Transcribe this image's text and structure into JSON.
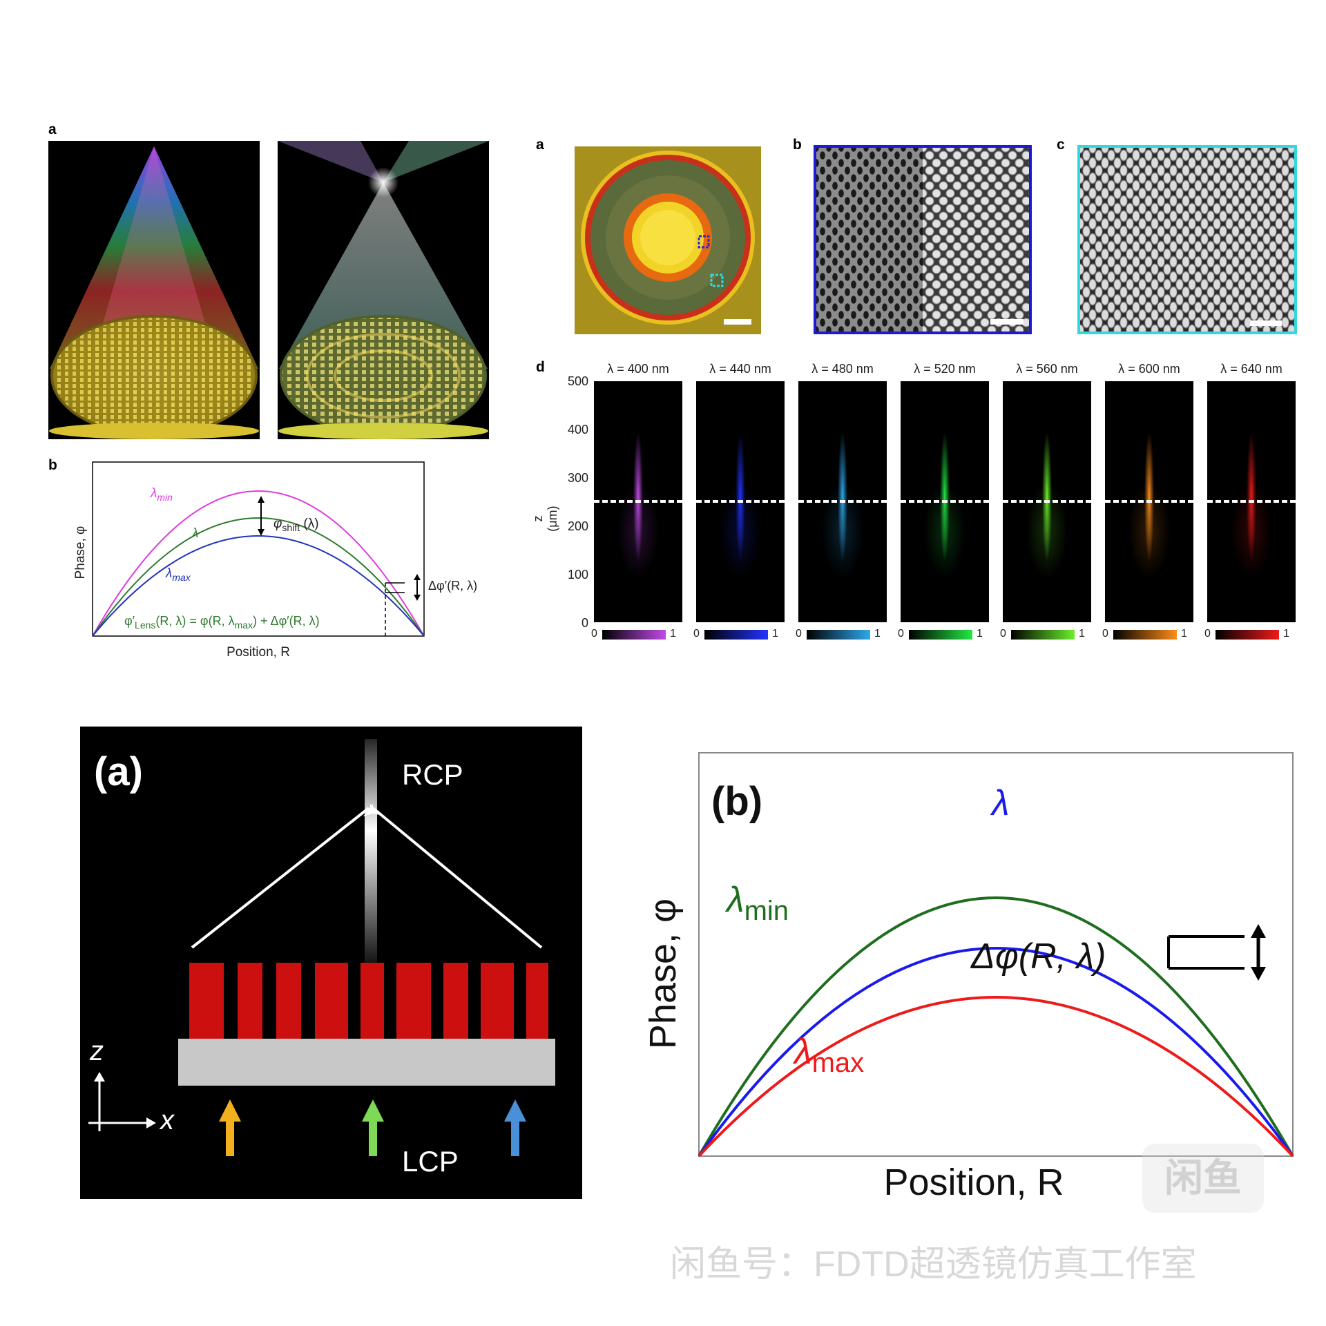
{
  "top_left": {
    "label_a": "a",
    "label_b": "b",
    "plot": {
      "ylabel": "Phase, φ",
      "xlabel": "Position, R",
      "curve_min": "λ",
      "curve_min_sub": "min",
      "curve_mid": "λ",
      "curve_max": "λ",
      "curve_max_sub": "max",
      "shift_label": "φ",
      "shift_sub": "shift",
      "shift_arg": " (λ)",
      "delta_label": "Δφ′(R, λ)",
      "eq_pre": "φ′",
      "eq_sub": "Lens",
      "eq_mid": "(R, λ) = φ(R, λ",
      "eq_sub2": "max",
      "eq_post": ") + Δφ′(R, λ)",
      "colors": {
        "min": "#e03ae0",
        "mid": "#2f7a2f",
        "max": "#2233bb"
      }
    }
  },
  "top_right": {
    "label_a": "a",
    "label_b": "b",
    "label_c": "c",
    "label_d": "d",
    "ylabel": "z (μm)",
    "yticks": [
      "500",
      "400",
      "300",
      "200",
      "100",
      "0"
    ],
    "wavelengths": [
      {
        "title": "λ = 400 nm",
        "color": "#c04ae8"
      },
      {
        "title": "λ = 440 nm",
        "color": "#2233ff"
      },
      {
        "title": "λ = 480 nm",
        "color": "#2ea8ee"
      },
      {
        "title": "λ = 520 nm",
        "color": "#22e844"
      },
      {
        "title": "λ = 560 nm",
        "color": "#6af02a"
      },
      {
        "title": "λ = 600 nm",
        "color": "#ff8c1a"
      },
      {
        "title": "λ = 640 nm",
        "color": "#ee1a1a"
      }
    ],
    "cbar_min": "0",
    "cbar_max": "1"
  },
  "bottom_left": {
    "label": "(a)",
    "top_text": "RCP",
    "bottom_text": "LCP",
    "axis_z": "z",
    "axis_x": "x",
    "arrow_colors": [
      "#f2b01e",
      "#7ed957",
      "#4a90d9"
    ]
  },
  "bottom_right": {
    "label": "(b)",
    "ylabel": "Phase, φ",
    "xlabel": "Position, R",
    "curve_lambda": "λ",
    "curve_min": "λ",
    "curve_min_sub": "min",
    "curve_max": "λ",
    "curve_max_sub": "max",
    "delta_label": "Δφ(R, λ)",
    "colors": {
      "min": "#1f6e1f",
      "mid": "#1a1aee",
      "max": "#ee1a1a"
    }
  },
  "watermark": {
    "logo": "闲鱼",
    "text": "闲鱼号：FDTD超透镜仿真工作室"
  }
}
